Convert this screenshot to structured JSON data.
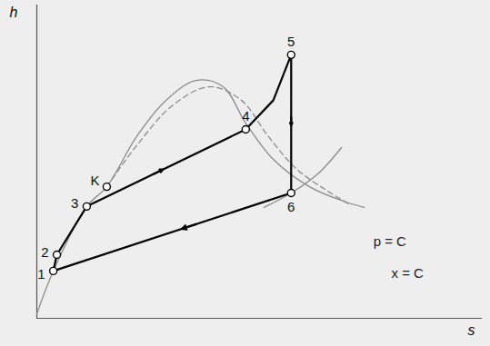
{
  "chart_data": {
    "type": "line",
    "x_label": "s",
    "y_label": "h",
    "xlim": [
      0,
      100
    ],
    "ylim": [
      0,
      100
    ],
    "tick_labels": false,
    "series": [
      {
        "color": "#8c8c8c",
        "x": [
          0,
          3.7,
          11.2,
          15.7,
          22.4,
          28.6,
          35.7,
          41.8,
          46.9,
          53.1,
          61.2,
          69.4,
          73.5
        ],
        "values": [
          1.4,
          15.1,
          35.7,
          42.0,
          58.0,
          69.0,
          75.9,
          73.9,
          62.3,
          50.7,
          42.0,
          37.1,
          35.4
        ]
      },
      {
        "name": "x = C",
        "color": "#8c8c8c",
        "line_style": "dashed",
        "x": [
          15.7,
          22.4,
          30.6,
          38.8,
          45.9,
          52.0,
          58.2,
          65.3,
          70.4
        ],
        "values": [
          42.0,
          55.1,
          68.1,
          73.9,
          69.6,
          58.0,
          47.8,
          40.6,
          36.2
        ]
      },
      {
        "name": "p = C",
        "color": "#8c8c8c",
        "x": [
          51.0,
          57.1,
          63.3,
          68.4
        ],
        "values": [
          35.4,
          40.0,
          46.4,
          54.5
        ]
      },
      {
        "color": "#000000",
        "marker": "circle",
        "x": [
          3.7,
          4.5,
          11.2,
          46.9,
          53.1,
          57.1,
          57.1,
          3.7
        ],
        "values": [
          15.1,
          20.3,
          35.7,
          60.3,
          69.6,
          84.1,
          40.0,
          15.1
        ]
      }
    ],
    "points": [
      {
        "label": "1",
        "x": 3.7,
        "y": 15.1
      },
      {
        "label": "2",
        "x": 4.5,
        "y": 20.3
      },
      {
        "label": "3",
        "x": 11.2,
        "y": 35.7
      },
      {
        "label": "K",
        "x": 15.7,
        "y": 42.0
      },
      {
        "label": "4",
        "x": 46.9,
        "y": 60.3
      },
      {
        "label": "5",
        "x": 57.1,
        "y": 84.1
      },
      {
        "label": "6",
        "x": 57.1,
        "y": 40.0
      }
    ]
  }
}
